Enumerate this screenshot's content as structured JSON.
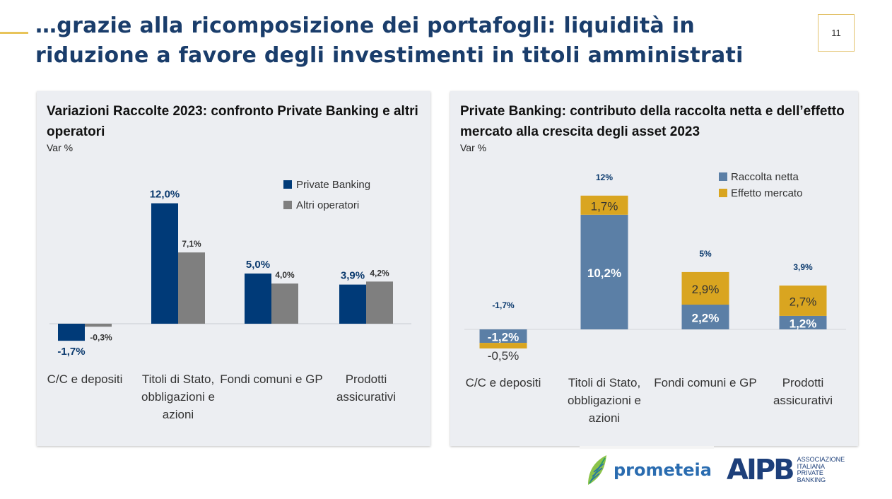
{
  "header": {
    "title": "…grazie alla ricomposizione dei portafogli: liquidità in riduzione a favore degli investimenti in titoli amministrati",
    "page_number": "11"
  },
  "chart_data": [
    {
      "type": "bar",
      "title": "Variazioni Raccolte 2023: confronto Private Banking e altri operatori",
      "subtitle": "Var %",
      "categories": [
        "C/C e depositi",
        "Titoli di Stato, obbligazioni e azioni",
        "Fondi comuni e GP",
        "Prodotti assicurativi"
      ],
      "series": [
        {
          "name": "Private Banking",
          "values": [
            -1.7,
            12.0,
            5.0,
            3.9
          ],
          "labels": [
            "-1,7%",
            "12,0%",
            "5,0%",
            "3,9%"
          ],
          "color": "#003a78"
        },
        {
          "name": "Altri operatori",
          "values": [
            -0.3,
            7.1,
            4.0,
            4.2
          ],
          "labels": [
            "-0,3%",
            "7,1%",
            "4,0%",
            "4,2%"
          ],
          "color": "#7f7f7f"
        }
      ],
      "legend_position": "top-right",
      "grid": false
    },
    {
      "type": "bar",
      "stacked": true,
      "title": "Private Banking: contributo della raccolta netta e dell’effetto mercato alla crescita degli asset 2023",
      "subtitle": "Var %",
      "categories": [
        "C/C e depositi",
        "Titoli di Stato, obbligazioni e azioni",
        "Fondi comuni e GP",
        "Prodotti assicurativi"
      ],
      "series": [
        {
          "name": "Raccolta netta",
          "values": [
            -1.2,
            10.2,
            2.2,
            1.2
          ],
          "labels": [
            "-1,2%",
            "10,2%",
            "2,2%",
            "1,2%"
          ],
          "color": "#5b7fa6"
        },
        {
          "name": "Effetto mercato",
          "values": [
            -0.5,
            1.7,
            2.9,
            2.7
          ],
          "labels": [
            "-0,5%",
            "1,7%",
            "2,9%",
            "2,7%"
          ],
          "color": "#d9a520"
        }
      ],
      "totals": [
        -1.7,
        12,
        5,
        3.9
      ],
      "total_labels": [
        "-1,7%",
        "12%",
        "5%",
        "3,9%"
      ],
      "legend_position": "top-right",
      "grid": false
    }
  ],
  "logos": {
    "prometeia": "prometeia",
    "aipb_mark": "AIPB",
    "aipb_text": "ASSOCIAZIONE\nITALIANA\nPRIVATE\nBANKING"
  }
}
